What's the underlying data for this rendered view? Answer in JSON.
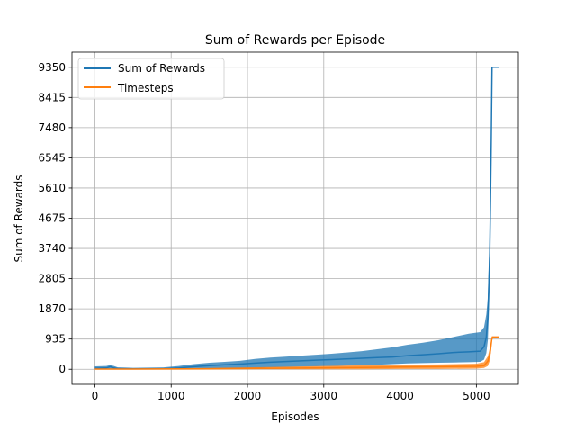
{
  "chart_data": {
    "type": "line",
    "title": "Sum of Rewards per Episode",
    "xlabel": "Episodes",
    "ylabel": "Sum of Rewards",
    "xlim": [
      -300,
      5550
    ],
    "ylim": [
      -467.5,
      9817.5
    ],
    "x_ticks": [
      0,
      1000,
      2000,
      3000,
      4000,
      5000
    ],
    "y_ticks": [
      0,
      935,
      1870,
      2805,
      3740,
      4675,
      5610,
      6545,
      7480,
      8415,
      9350
    ],
    "grid": true,
    "legend_position": "top-left",
    "series": [
      {
        "name": "Sum of Rewards",
        "color": "#1f77b4",
        "x": [
          0,
          150,
          200,
          250,
          300,
          400,
          500,
          700,
          900,
          1100,
          1300,
          1500,
          1700,
          1900,
          2100,
          2300,
          2500,
          2700,
          2900,
          3100,
          3300,
          3500,
          3700,
          3900,
          4100,
          4300,
          4500,
          4700,
          4900,
          5050,
          5100,
          5130,
          5150,
          5165,
          5175,
          5185,
          5195,
          5205,
          5300
        ],
        "values": [
          30,
          40,
          80,
          40,
          20,
          20,
          15,
          15,
          15,
          40,
          80,
          110,
          140,
          160,
          190,
          220,
          240,
          260,
          280,
          300,
          320,
          340,
          360,
          380,
          420,
          450,
          480,
          520,
          540,
          560,
          700,
          1000,
          1600,
          2800,
          3600,
          5200,
          7100,
          9350,
          9350
        ],
        "band_top": [
          90,
          100,
          130,
          100,
          60,
          50,
          45,
          50,
          60,
          100,
          160,
          200,
          230,
          260,
          320,
          360,
          390,
          420,
          450,
          480,
          520,
          560,
          620,
          680,
          760,
          820,
          900,
          1000,
          1100,
          1150,
          1300,
          1700,
          2200,
          3400,
          3900,
          5400,
          7100,
          9350,
          9350
        ],
        "band_bottom": [
          0,
          0,
          10,
          0,
          0,
          0,
          0,
          0,
          0,
          0,
          0,
          10,
          20,
          30,
          40,
          60,
          70,
          80,
          90,
          100,
          110,
          120,
          140,
          160,
          180,
          190,
          200,
          210,
          220,
          230,
          300,
          500,
          900,
          1800,
          2600,
          4500,
          6200,
          9350,
          9350
        ]
      },
      {
        "name": "Timesteps",
        "color": "#ff7f0e",
        "x": [
          0,
          500,
          1000,
          1500,
          2000,
          2500,
          3000,
          3500,
          4000,
          4500,
          5000,
          5100,
          5150,
          5180,
          5200,
          5210,
          5300
        ],
        "values": [
          5,
          5,
          10,
          15,
          25,
          35,
          45,
          55,
          70,
          80,
          90,
          110,
          250,
          500,
          900,
          1000,
          1000
        ],
        "band_top": [
          20,
          20,
          30,
          40,
          60,
          80,
          100,
          120,
          140,
          150,
          170,
          220,
          400,
          700,
          1000,
          1000,
          1000
        ],
        "band_bottom": [
          0,
          0,
          0,
          0,
          0,
          0,
          0,
          0,
          10,
          10,
          20,
          40,
          100,
          300,
          800,
          1000,
          1000
        ]
      }
    ]
  }
}
